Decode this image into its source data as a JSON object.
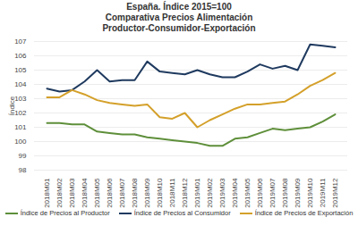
{
  "chart_data": {
    "type": "line",
    "title": "España. Índice 2015=100",
    "subtitle": [
      "Comparativa Precios Alimentación",
      "Productor-Consumidor-Exportación"
    ],
    "y_label": "Índice",
    "categories": [
      "2018M01",
      "2018M02",
      "2018M03",
      "2018M04",
      "2018M05",
      "2018M06",
      "2018M07",
      "2018M08",
      "2018M09",
      "2018M10",
      "2018M11",
      "2018M12",
      "2019M01",
      "2019M02",
      "2019M03",
      "2019M04",
      "2019M05",
      "2019M06",
      "2019M07",
      "2019M08",
      "2019M09",
      "2019M10",
      "2019M11",
      "2019M12"
    ],
    "series": [
      {
        "name": "Índice de Precios al Productor",
        "color": "#5e8f3a",
        "values": [
          101.3,
          101.3,
          101.2,
          101.2,
          100.7,
          100.6,
          100.5,
          100.5,
          100.3,
          100.2,
          100.1,
          100.0,
          99.9,
          99.7,
          99.7,
          100.2,
          100.3,
          100.6,
          100.9,
          100.8,
          100.9,
          101.0,
          101.4,
          101.9
        ]
      },
      {
        "name": "Índice de Precios al Consumidor",
        "color": "#1f3a5f",
        "values": [
          103.7,
          103.5,
          103.6,
          104.2,
          105.0,
          104.2,
          104.3,
          104.3,
          105.6,
          104.9,
          104.8,
          104.7,
          105.0,
          104.7,
          104.5,
          104.5,
          104.9,
          105.4,
          105.1,
          105.3,
          105.0,
          106.8,
          106.7,
          106.6
        ]
      },
      {
        "name": "Índice de Precios de Exportación",
        "color": "#d4a02a",
        "values": [
          103.1,
          103.1,
          103.6,
          103.3,
          102.9,
          102.7,
          102.6,
          102.5,
          102.6,
          101.7,
          101.6,
          102.0,
          101.0,
          101.5,
          101.9,
          102.3,
          102.6,
          102.6,
          102.7,
          102.8,
          103.3,
          103.9,
          104.3,
          104.8
        ]
      }
    ],
    "ylim": [
      98,
      107
    ],
    "yticks": [
      98,
      99,
      100,
      101,
      102,
      103,
      104,
      105,
      106,
      107
    ],
    "grid": true,
    "legend": "bottom"
  }
}
